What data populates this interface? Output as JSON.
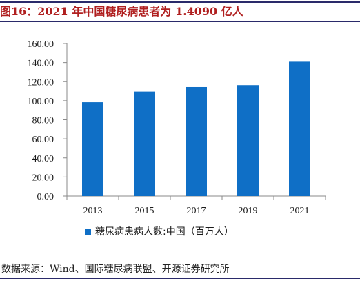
{
  "title": "图16：2021 年中国糖尿病患者为 1.4090 亿人",
  "source": "数据来源：Wind、国际糖尿病联盟、开源证券研究所",
  "colors": {
    "bar": "#0f6fc6",
    "title": "#b01f1f",
    "rule": "#2a2a6a",
    "text": "#1a1a1a"
  },
  "chart_data": {
    "type": "bar",
    "categories": [
      "2013",
      "2015",
      "2017",
      "2019",
      "2021"
    ],
    "series": [
      {
        "name": "糖尿病患病人数:中国（百万人）",
        "values": [
          98.4,
          109.6,
          114.4,
          116.4,
          140.9
        ]
      }
    ],
    "y_ticks": [
      "0.00",
      "20.00",
      "40.00",
      "60.00",
      "80.00",
      "100.00",
      "120.00",
      "140.00",
      "160.00"
    ],
    "ylim": [
      0,
      160
    ],
    "grid": false,
    "legend_position": "bottom",
    "title": "",
    "xlabel": "",
    "ylabel": ""
  }
}
